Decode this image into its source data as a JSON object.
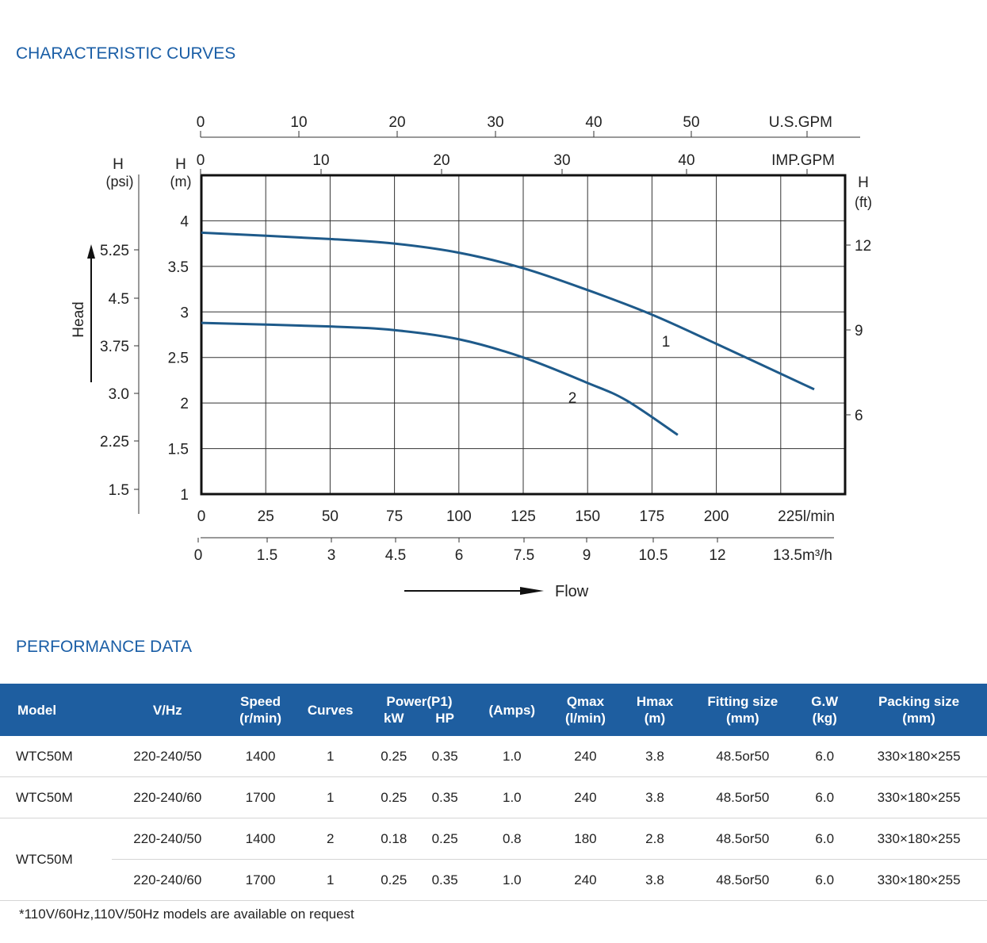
{
  "titles": {
    "curves": "CHARACTERISTIC CURVES",
    "performance": "PERFORMANCE DATA"
  },
  "colors": {
    "accent": "#1a5ea6",
    "header_bg": "#1e5ea0",
    "curve": "#1e5a8a"
  },
  "chart_data": {
    "type": "line",
    "x_primary": {
      "unit": "l/min",
      "ticks": [
        0,
        25,
        50,
        75,
        100,
        125,
        150,
        175,
        200,
        225
      ],
      "last_label": "225l/min",
      "range": [
        0,
        250
      ]
    },
    "x_m3h": {
      "labels": [
        "0",
        "1.5",
        "3",
        "4.5",
        "6",
        "7.5",
        "9",
        "10.5",
        "12",
        "13.5m³/h"
      ]
    },
    "x_usgpm": {
      "labels": [
        "0",
        "10",
        "20",
        "30",
        "40",
        "50"
      ],
      "unit": "U.S.GPM"
    },
    "x_impgpm": {
      "labels": [
        "0",
        "10",
        "20",
        "30",
        "40"
      ],
      "unit": "IMP.GPM"
    },
    "y_m": {
      "label_top": "H",
      "label_bottom": "(m)",
      "ticks": [
        "1",
        "1.5",
        "2",
        "2.5",
        "3",
        "3.5",
        "4"
      ],
      "range": [
        1,
        4.5
      ]
    },
    "y_psi": {
      "label_top": "H",
      "label_bottom": "(psi)",
      "ticks": [
        "1.5",
        "2.25",
        "3.0",
        "3.75",
        "4.5",
        "5.25"
      ]
    },
    "y_ft": {
      "label_top": "H",
      "label_bottom": "(ft)",
      "ticks": [
        "6",
        "9",
        "12"
      ]
    },
    "head_label": "Head",
    "flow_label": "Flow",
    "grid": true,
    "series": [
      {
        "name": "1",
        "x": [
          0,
          50,
          75,
          100,
          125,
          150,
          175,
          200,
          238
        ],
        "y": [
          3.87,
          3.8,
          3.75,
          3.65,
          3.48,
          3.24,
          2.97,
          2.65,
          2.15
        ]
      },
      {
        "name": "2",
        "x": [
          0,
          50,
          75,
          100,
          125,
          150,
          165,
          185
        ],
        "y": [
          2.88,
          2.84,
          2.8,
          2.7,
          2.5,
          2.22,
          2.03,
          1.65
        ]
      }
    ]
  },
  "table": {
    "headers": {
      "model": "Model",
      "vhz": "V/Hz",
      "speed": "Speed",
      "speed_unit": "(r/min)",
      "curves": "Curves",
      "power": "Power(P1)",
      "kw": "kW",
      "hp": "HP",
      "amps": "(Amps)",
      "qmax": "Qmax",
      "qmax_unit": "(l/min)",
      "hmax": "Hmax",
      "hmax_unit": "(m)",
      "fitting": "Fitting size",
      "fitting_unit": "(mm)",
      "gw": "G.W",
      "gw_unit": "(kg)",
      "packing": "Packing size",
      "packing_unit": "(mm)"
    },
    "rows": [
      {
        "model": "WTC50M",
        "vhz": "220-240/50",
        "speed": "1400",
        "curves": "1",
        "kw": "0.25",
        "hp": "0.35",
        "amps": "1.0",
        "qmax": "240",
        "hmax": "3.8",
        "fitting": "48.5or50",
        "gw": "6.0",
        "packing": "330×180×255"
      },
      {
        "model": "WTC50M",
        "vhz": "220-240/60",
        "speed": "1700",
        "curves": "1",
        "kw": "0.25",
        "hp": "0.35",
        "amps": "1.0",
        "qmax": "240",
        "hmax": "3.8",
        "fitting": "48.5or50",
        "gw": "6.0",
        "packing": "330×180×255"
      },
      {
        "model": "WTC50M",
        "vhz": "220-240/50",
        "speed": "1400",
        "curves": "2",
        "kw": "0.18",
        "hp": "0.25",
        "amps": "0.8",
        "qmax": "180",
        "hmax": "2.8",
        "fitting": "48.5or50",
        "gw": "6.0",
        "packing": "330×180×255"
      },
      {
        "model": "",
        "vhz": "220-240/60",
        "speed": "1700",
        "curves": "1",
        "kw": "0.25",
        "hp": "0.35",
        "amps": "1.0",
        "qmax": "240",
        "hmax": "3.8",
        "fitting": "48.5or50",
        "gw": "6.0",
        "packing": "330×180×255"
      }
    ]
  },
  "footnote": "*110V/60Hz,110V/50Hz models are available on request"
}
